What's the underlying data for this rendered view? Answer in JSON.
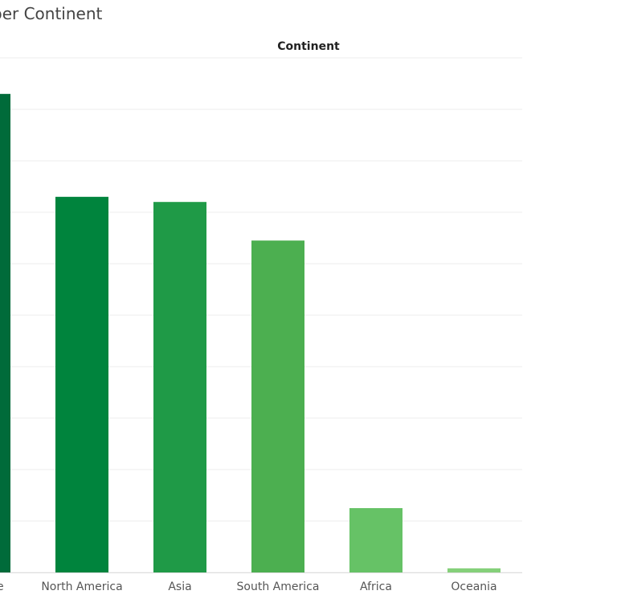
{
  "chart_data": {
    "type": "bar",
    "title": "per Continent",
    "column_header": "Continent",
    "categories": [
      "Europe",
      "North America",
      "Asia",
      "South America",
      "Africa",
      "Oceania"
    ],
    "values": [
      93,
      73,
      72,
      64.5,
      12.5,
      0.8
    ],
    "colors": [
      "#006b3a",
      "#00843d",
      "#1f9a47",
      "#4caf50",
      "#66c266",
      "#85d07a"
    ],
    "ylim": [
      0,
      100
    ],
    "grid": true,
    "xlabel": "",
    "ylabel": ""
  }
}
